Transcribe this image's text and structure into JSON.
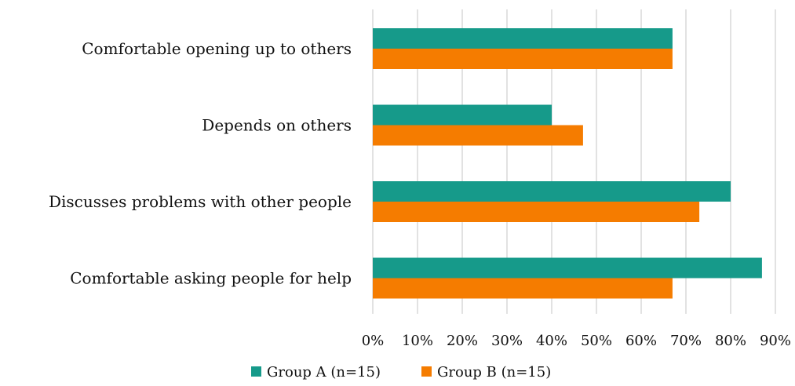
{
  "chart_data": {
    "type": "bar",
    "orientation": "horizontal",
    "title": "",
    "xlabel": "",
    "ylabel": "",
    "categories": [
      "Comfortable opening up to others",
      "Depends on others",
      "Discusses problems with other people",
      "Comfortable asking people for help"
    ],
    "series": [
      {
        "name": "Group A (n=15)",
        "color": "#169A8A",
        "values": [
          67,
          40,
          80,
          87
        ]
      },
      {
        "name": "Group B (n=15)",
        "color": "#F57C00",
        "values": [
          67,
          47,
          73,
          67
        ]
      }
    ],
    "xlim": [
      0,
      90
    ],
    "x_ticks": [
      "0%",
      "10%",
      "20%",
      "30%",
      "40%",
      "50%",
      "60%",
      "70%",
      "80%",
      "90%"
    ],
    "value_unit": "%",
    "grid": "vertical",
    "legend_position": "bottom"
  }
}
